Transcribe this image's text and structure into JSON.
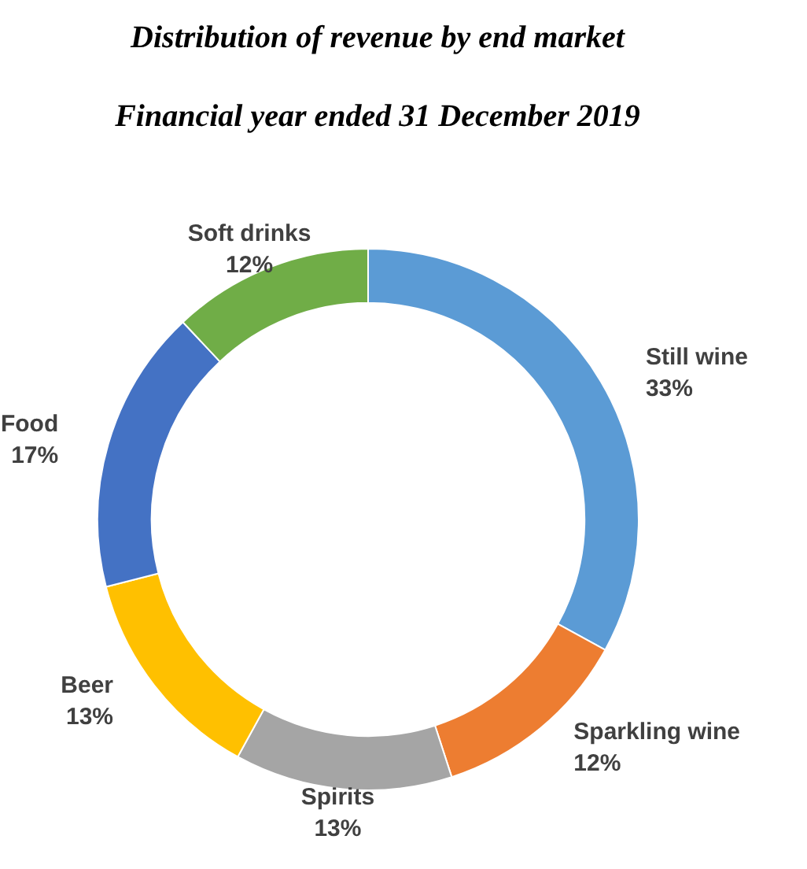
{
  "chart_data": {
    "type": "donut",
    "title": "Distribution of revenue by end market",
    "subtitle": "Financial year ended 31 December 2019",
    "categories": [
      "Still wine",
      "Sparkling wine",
      "Spirits",
      "Beer",
      "Food",
      "Soft drinks"
    ],
    "values": [
      33,
      12,
      13,
      13,
      17,
      12
    ],
    "value_labels": [
      "33%",
      "12%",
      "13%",
      "13%",
      "17%",
      "12%"
    ],
    "colors": [
      "#5b9bd5",
      "#ed7d31",
      "#a5a5a5",
      "#ffc000",
      "#4472c4",
      "#70ad47"
    ]
  }
}
